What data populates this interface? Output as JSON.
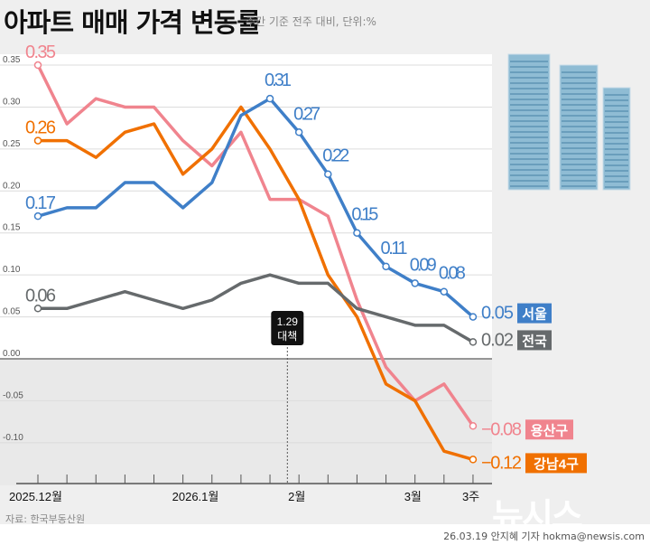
{
  "header": {
    "title": "아파트 매매 가격 변동률",
    "subtitle": "주간 기준 전주 대비, 단위:%"
  },
  "footer": {
    "source": "자료: 한국부동산원",
    "credit": "26.03.19 안지혜 기자 hokma@newsis.com",
    "logo": "뉴시스"
  },
  "annotation": {
    "line1": "1.29",
    "line2": "대책",
    "at_index": 8.6
  },
  "chart_data": {
    "type": "line",
    "ylim": [
      -0.14,
      0.37
    ],
    "yticks": [
      "0.35",
      "0.30",
      "0.25",
      "0.20",
      "0.15",
      "0.10",
      "0.05",
      "0.00",
      "-0.05",
      "-0.10"
    ],
    "ytick_values": [
      0.35,
      0.3,
      0.25,
      0.2,
      0.15,
      0.1,
      0.05,
      0.0,
      -0.05,
      -0.1
    ],
    "xtick_labels": [
      {
        "i": 0,
        "label": "2025.12월"
      },
      {
        "i": 5,
        "label": "2026.1월"
      },
      {
        "i": 9,
        "label": "2월"
      },
      {
        "i": 13,
        "label": "3월"
      },
      {
        "i": 15,
        "label": "3주"
      }
    ],
    "grid": true,
    "series": [
      {
        "name": "용산구",
        "color": "#f0848e",
        "values": [
          0.35,
          0.28,
          0.31,
          0.3,
          0.3,
          0.26,
          0.23,
          0.27,
          0.19,
          0.19,
          0.17,
          0.07,
          -0.01,
          -0.05,
          -0.03,
          -0.08
        ],
        "labels": {
          "0": "0.35"
        },
        "end_label": "-0.08"
      },
      {
        "name": "강남4구",
        "color": "#f07000",
        "values": [
          0.26,
          0.26,
          0.24,
          0.27,
          0.28,
          0.22,
          0.25,
          0.3,
          0.25,
          0.19,
          0.1,
          0.05,
          -0.03,
          -0.05,
          -0.11,
          -0.12
        ],
        "labels": {
          "0": "0.26"
        },
        "end_label": "-0.12"
      },
      {
        "name": "전국",
        "color": "#666a6c",
        "values": [
          0.06,
          0.06,
          0.07,
          0.08,
          0.07,
          0.06,
          0.07,
          0.09,
          0.1,
          0.09,
          0.09,
          0.06,
          0.05,
          0.04,
          0.04,
          0.02
        ],
        "labels": {
          "0": "0.06"
        },
        "end_label": "0.02"
      },
      {
        "name": "서울",
        "color": "#3f7fc8",
        "values": [
          0.17,
          0.18,
          0.18,
          0.21,
          0.21,
          0.18,
          0.21,
          0.29,
          0.31,
          0.27,
          0.22,
          0.15,
          0.11,
          0.09,
          0.08,
          0.05
        ],
        "labels": {
          "0": "0.17",
          "8": "0.31",
          "9": "0.27",
          "10": "0.22",
          "11": "0.15",
          "12": "0.11",
          "13": "0.09",
          "14": "0.08"
        },
        "end_label": "0.05"
      }
    ]
  }
}
